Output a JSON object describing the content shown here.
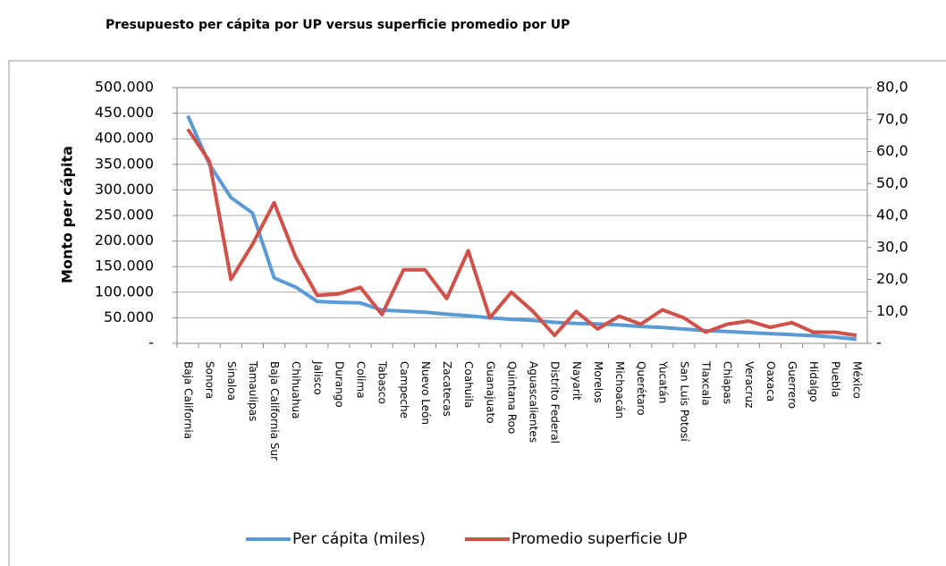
{
  "chart_data": {
    "type": "line",
    "title": "Presupuesto per cápita por UP versus superficie promedio por UP",
    "y_label": "Monto per cápita",
    "categories": [
      "Baja California",
      "Sonora",
      "Sinaloa",
      "Tamaulipas",
      "Baja California Sur",
      "Chihuahua",
      "Jalisco",
      "Durango",
      "Colima",
      "Tabasco",
      "Campeche",
      "Nuevo León",
      "Zacatecas",
      "Coahuila",
      "Guanajuato",
      "Quintana Roo",
      "Aguascalientes",
      "Distrito Federal",
      "Nayarit",
      "Morelos",
      "Michoacán",
      "Querétaro",
      "Yucatán",
      "San Luis Potosí",
      "Tlaxcala",
      "Chiapas",
      "Veracruz",
      "Oaxaca",
      "Guerrero",
      "Hidalgo",
      "Puebla",
      "México"
    ],
    "series": [
      {
        "name": "Per cápita (miles)",
        "color": "#5b9bd5",
        "axis": "y",
        "values": [
          445000,
          350000,
          285000,
          255000,
          128000,
          110000,
          82000,
          80000,
          79000,
          65000,
          63000,
          61000,
          57000,
          54000,
          50000,
          47000,
          45000,
          41000,
          39000,
          38000,
          36000,
          33000,
          31000,
          28000,
          25000,
          23000,
          21000,
          19000,
          17000,
          15000,
          12000,
          8000
        ]
      },
      {
        "name": "Promedio superficie UP",
        "color": "#d0504a",
        "axis": "y2",
        "values": [
          67,
          57,
          20,
          31,
          44,
          27,
          15,
          15.5,
          17.5,
          9,
          23,
          23,
          14,
          29,
          8,
          16,
          10,
          2.5,
          10,
          4.5,
          8.5,
          6,
          10.5,
          8,
          3.5,
          6,
          7,
          5,
          6.5,
          3.5,
          3.5,
          2.5
        ]
      }
    ],
    "ylim": [
      0,
      500000
    ],
    "yticks": [
      {
        "value": 0,
        "label": "-"
      },
      {
        "value": 50000,
        "label": "50.000"
      },
      {
        "value": 100000,
        "label": "100.000"
      },
      {
        "value": 150000,
        "label": "150.000"
      },
      {
        "value": 200000,
        "label": "200.000"
      },
      {
        "value": 250000,
        "label": "250.000"
      },
      {
        "value": 300000,
        "label": "300.000"
      },
      {
        "value": 350000,
        "label": "350.000"
      },
      {
        "value": 400000,
        "label": "400.000"
      },
      {
        "value": 450000,
        "label": "450.000"
      },
      {
        "value": 500000,
        "label": "500.000"
      }
    ],
    "y2lim": [
      0,
      80
    ],
    "y2ticks": [
      {
        "value": 0,
        "label": "-"
      },
      {
        "value": 10,
        "label": "10,0"
      },
      {
        "value": 20,
        "label": "20,0"
      },
      {
        "value": 30,
        "label": "30,0"
      },
      {
        "value": 40,
        "label": "40,0"
      },
      {
        "value": 50,
        "label": "50,0"
      },
      {
        "value": 60,
        "label": "60,0"
      },
      {
        "value": 70,
        "label": "70,0"
      },
      {
        "value": 80,
        "label": "80,0"
      }
    ],
    "grid": true,
    "legend": "bottom"
  }
}
